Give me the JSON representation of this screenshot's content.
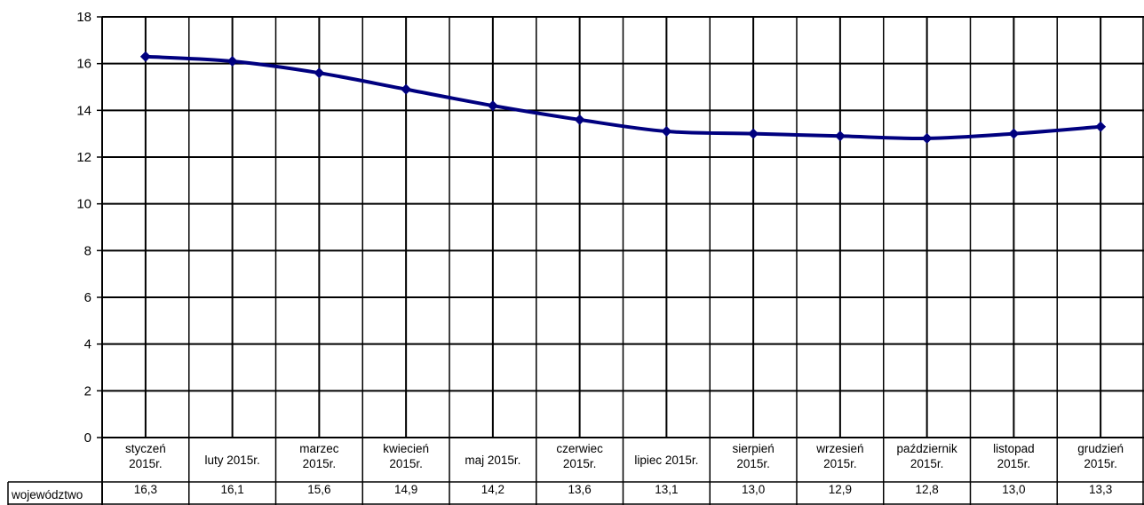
{
  "chart_data": {
    "type": "line",
    "categories": [
      [
        "styczeń",
        "2015r."
      ],
      [
        "luty 2015r."
      ],
      [
        "marzec",
        "2015r."
      ],
      [
        "kwiecień",
        "2015r."
      ],
      [
        "maj 2015r."
      ],
      [
        "czerwiec",
        "2015r."
      ],
      [
        "lipiec 2015r."
      ],
      [
        "sierpień",
        "2015r."
      ],
      [
        "wrzesień",
        "2015r."
      ],
      [
        "październik",
        "2015r."
      ],
      [
        "listopad",
        "2015r."
      ],
      [
        "grudzień",
        "2015r."
      ]
    ],
    "series": [
      {
        "name": "województwo",
        "values": [
          16.3,
          16.1,
          15.6,
          14.9,
          14.2,
          13.6,
          13.1,
          13.0,
          12.9,
          12.8,
          13.0,
          13.3
        ],
        "labels": [
          "16,3",
          "16,1",
          "15,6",
          "14,9",
          "14,2",
          "13,6",
          "13,1",
          "13,0",
          "12,9",
          "12,8",
          "13,0",
          "13,3"
        ],
        "color": "#00007F"
      }
    ],
    "yticks": [
      "0",
      "2",
      "4",
      "6",
      "8",
      "10",
      "12",
      "14",
      "16",
      "18"
    ],
    "ylim": [
      0,
      18
    ],
    "grid": true,
    "legend": "data-table-below"
  }
}
